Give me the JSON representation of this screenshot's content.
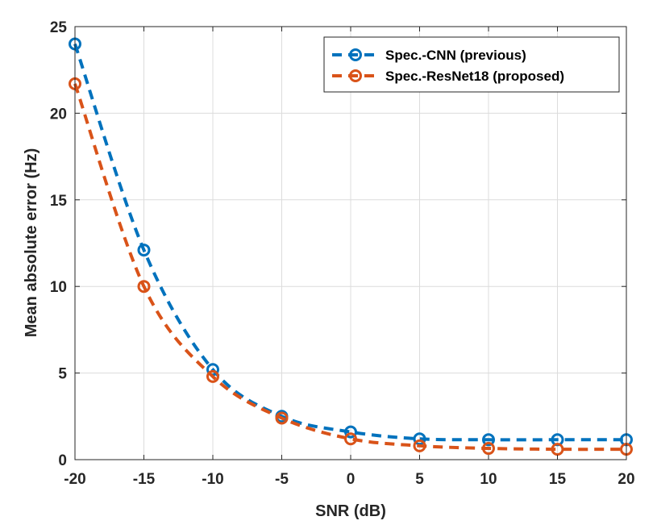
{
  "chart_data": {
    "type": "line",
    "title": "",
    "xlabel": "SNR (dB)",
    "ylabel": "Mean absolute error (Hz)",
    "xlim": [
      -20,
      20
    ],
    "ylim": [
      0,
      25
    ],
    "xticks": [
      "-20",
      "-15",
      "-10",
      "-5",
      "0",
      "5",
      "10",
      "15",
      "20"
    ],
    "yticks": [
      "0",
      "5",
      "10",
      "15",
      "20",
      "25"
    ],
    "grid": true,
    "legend_position": "top-right",
    "x": [
      -20,
      -15,
      -10,
      -5,
      0,
      5,
      10,
      15,
      20
    ],
    "series": [
      {
        "name": "Spec.-CNN (previous)",
        "color": "#0072BD",
        "line_style": "dashed",
        "marker": "circle",
        "values": [
          24.0,
          12.1,
          5.2,
          2.5,
          1.6,
          1.2,
          1.15,
          1.15,
          1.15
        ]
      },
      {
        "name": "Spec.-ResNet18 (proposed)",
        "color": "#D95319",
        "line_style": "dashed",
        "marker": "circle",
        "values": [
          21.7,
          10.0,
          4.8,
          2.4,
          1.2,
          0.8,
          0.65,
          0.6,
          0.6
        ]
      }
    ]
  }
}
